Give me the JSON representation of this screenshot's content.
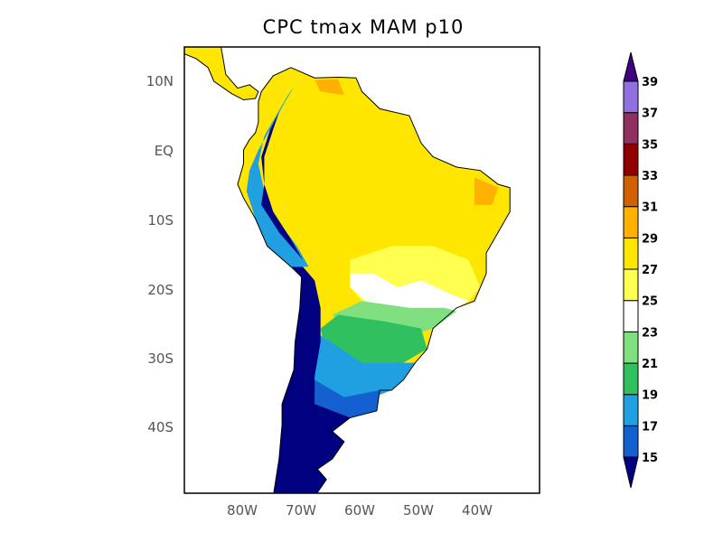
{
  "title": "CPC tmax MAM  p10",
  "lat_labels": [
    "10N",
    "EQ",
    "10S",
    "20S",
    "30S",
    "40S"
  ],
  "lon_labels": [
    "80W",
    "70W",
    "60W",
    "50W",
    "40W"
  ],
  "colorbar": {
    "levels": [
      "15",
      "17",
      "19",
      "21",
      "23",
      "25",
      "27",
      "29",
      "31",
      "33",
      "35",
      "37",
      "39"
    ],
    "colors": [
      "#000080",
      "#1560d0",
      "#20a0e0",
      "#30c060",
      "#80e080",
      "#ffffff",
      "#ffff50",
      "#ffe600",
      "#ffb000",
      "#d06000",
      "#900000",
      "#903060",
      "#9070e0",
      "#400080"
    ]
  }
}
